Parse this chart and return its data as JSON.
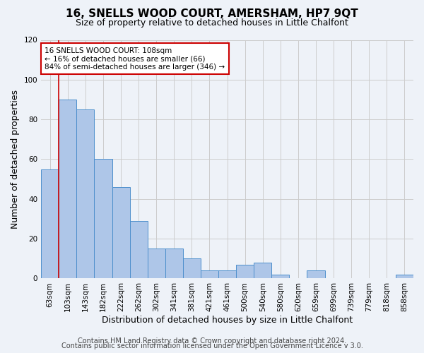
{
  "title": "16, SNELLS WOOD COURT, AMERSHAM, HP7 9QT",
  "subtitle": "Size of property relative to detached houses in Little Chalfont",
  "xlabel": "Distribution of detached houses by size in Little Chalfont",
  "ylabel": "Number of detached properties",
  "footer_line1": "Contains HM Land Registry data © Crown copyright and database right 2024.",
  "footer_line2": "Contains public sector information licensed under the Open Government Licence v 3.0.",
  "bin_labels": [
    "63sqm",
    "103sqm",
    "143sqm",
    "182sqm",
    "222sqm",
    "262sqm",
    "302sqm",
    "341sqm",
    "381sqm",
    "421sqm",
    "461sqm",
    "500sqm",
    "540sqm",
    "580sqm",
    "620sqm",
    "659sqm",
    "699sqm",
    "739sqm",
    "779sqm",
    "818sqm",
    "858sqm"
  ],
  "bar_values": [
    55,
    90,
    85,
    60,
    46,
    29,
    15,
    15,
    10,
    4,
    4,
    7,
    8,
    2,
    0,
    4,
    0,
    0,
    0,
    0,
    2
  ],
  "bar_color": "#aec6e8",
  "bar_edge_color": "#4d8fcc",
  "vline_x": 0.5,
  "property_line_label": "16 SNELLS WOOD COURT: 108sqm",
  "annotation_line1": "← 16% of detached houses are smaller (66)",
  "annotation_line2": "84% of semi-detached houses are larger (346) →",
  "annotation_box_edge": "#cc0000",
  "vline_color": "#cc0000",
  "ylim": [
    0,
    120
  ],
  "grid_color": "#cccccc",
  "bg_color": "#eef2f8",
  "title_fontsize": 11,
  "subtitle_fontsize": 9,
  "axis_label_fontsize": 9,
  "tick_fontsize": 7.5,
  "footer_fontsize": 7
}
